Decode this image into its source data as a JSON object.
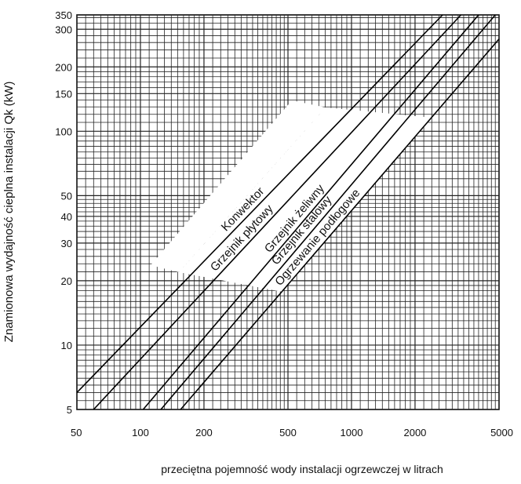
{
  "chart_data": {
    "type": "line",
    "xscale": "log",
    "yscale": "log",
    "xlim": [
      50,
      5000
    ],
    "ylim": [
      5,
      350
    ],
    "grid": true,
    "xlabel": "przeciętna pojemność wody instalacji ogrzewczej w litrach",
    "ylabel": "Znamionowa wydajność cieplna instalacji Qk (kW)",
    "x_ticks": [
      50,
      100,
      200,
      500,
      1000,
      2000,
      5000
    ],
    "x_tick_labels": [
      "50",
      "100",
      "200",
      "500",
      "1000",
      "2000",
      "5000"
    ],
    "y_ticks": [
      5,
      10,
      20,
      30,
      40,
      50,
      100,
      150,
      200,
      300,
      350
    ],
    "y_tick_labels": [
      "5",
      "10",
      "20",
      "30",
      "40",
      "50",
      "100",
      "150",
      "200",
      "300",
      "350"
    ],
    "series": [
      {
        "name": "Konwektor",
        "x": [
          50,
          2700
        ],
        "y": [
          6,
          350
        ]
      },
      {
        "name": "Grzejnik płytowy",
        "x": [
          60,
          3300
        ],
        "y": [
          5,
          350
        ]
      },
      {
        "name": "Grzejnik żeliwny",
        "x": [
          103,
          4000
        ],
        "y": [
          5,
          350
        ]
      },
      {
        "name": "Grzejnik stalowy",
        "x": [
          125,
          4800
        ],
        "y": [
          5,
          350
        ]
      },
      {
        "name": "Ogrzewanie podłogowe",
        "x": [
          155,
          5000
        ],
        "y": [
          5,
          270
        ]
      }
    ]
  }
}
